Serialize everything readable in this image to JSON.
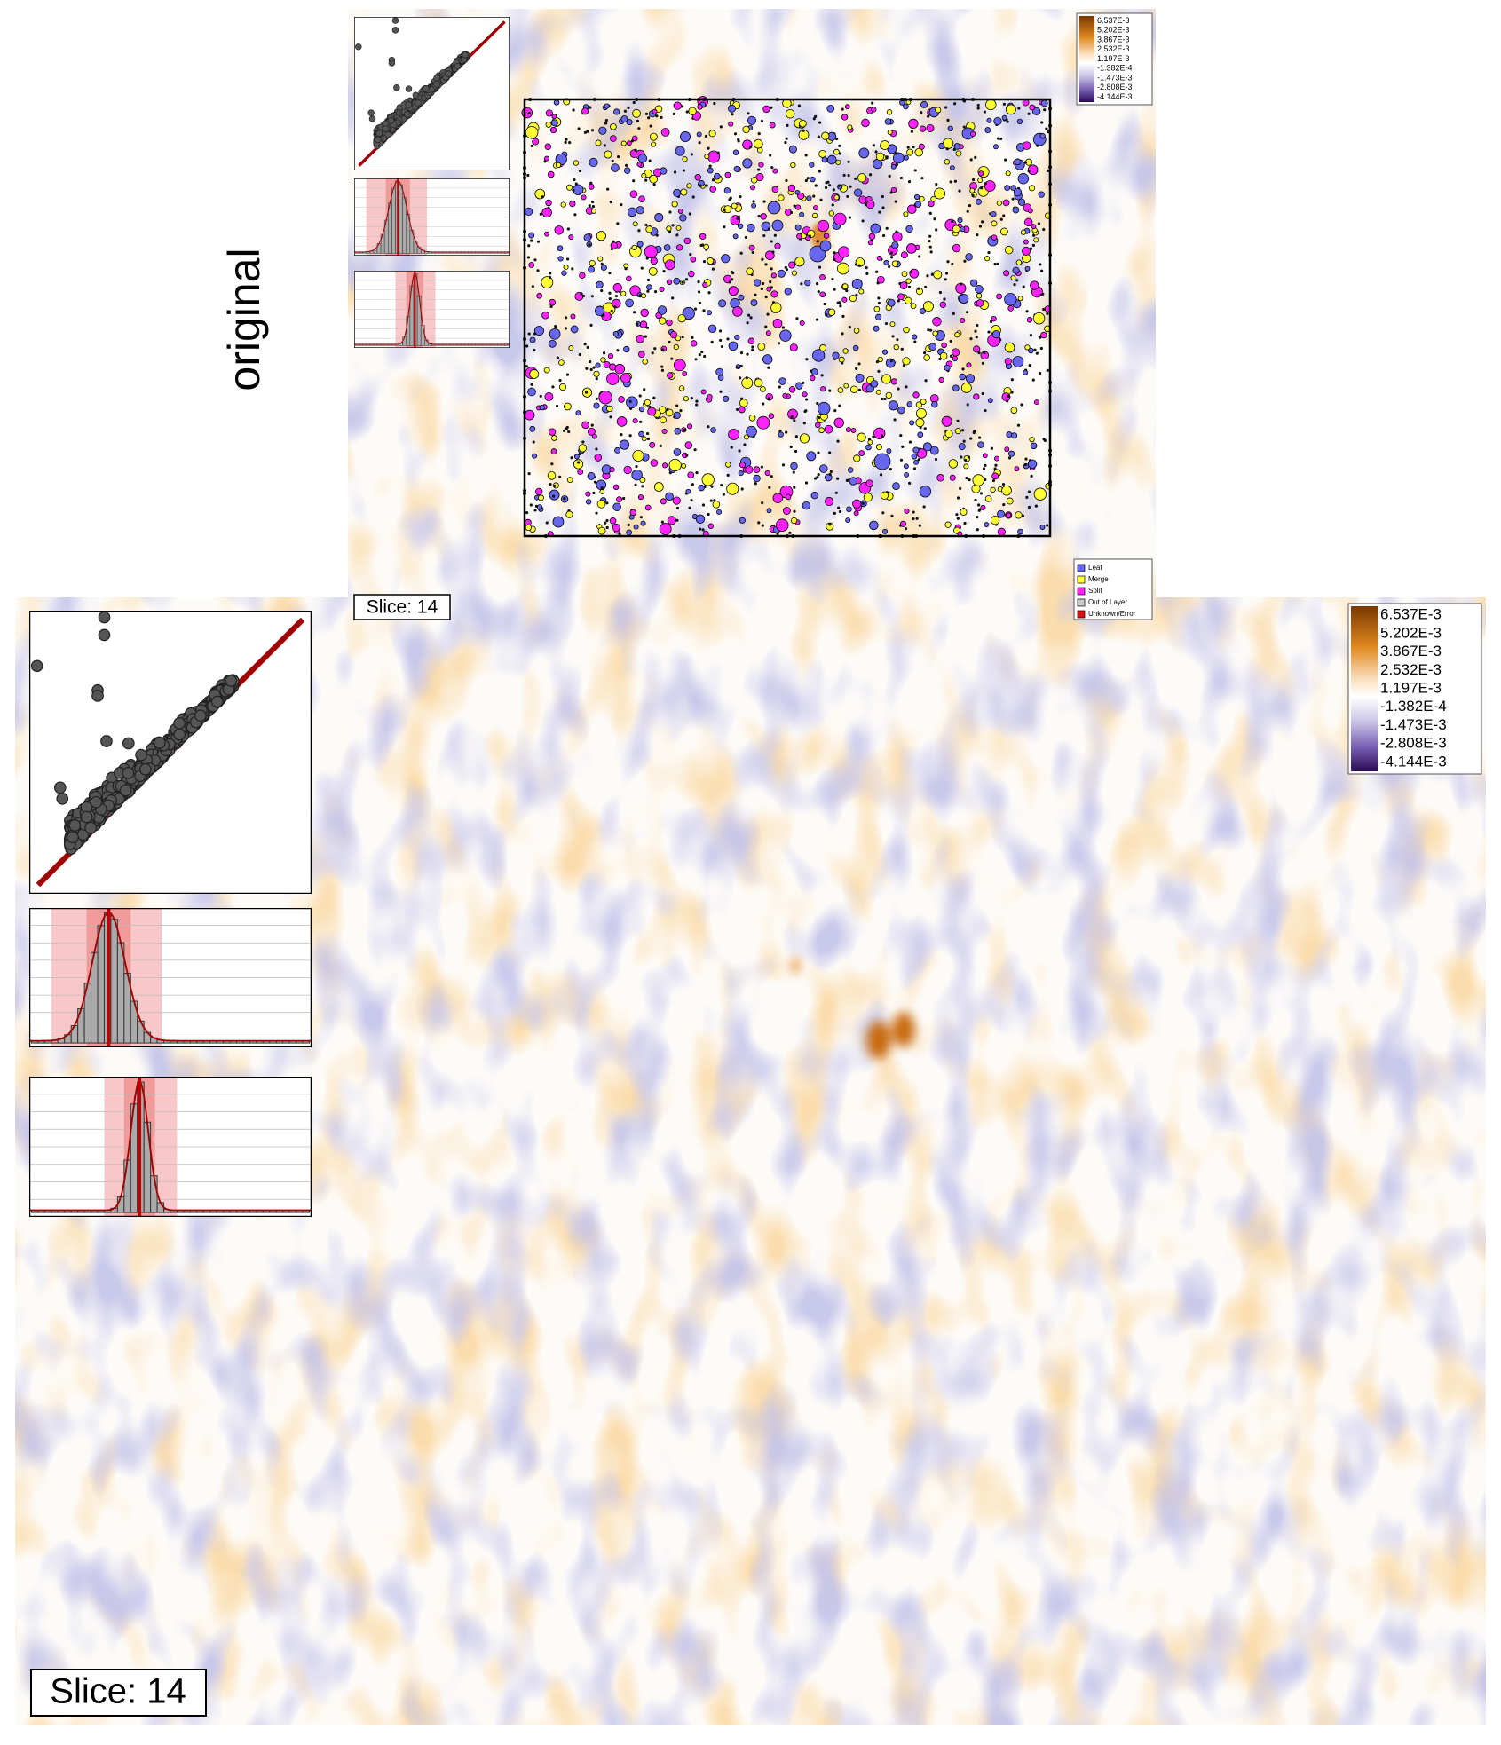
{
  "side_label": "original",
  "top_panel": {
    "colorbar": [
      "6.537E-3",
      "5.202E-3",
      "3.867E-3",
      "2.532E-3",
      "1.197E-3",
      "-1.382E-4",
      "-1.473E-3",
      "-2.808E-3",
      "-4.144E-3"
    ],
    "legend": [
      {
        "label": "Leaf",
        "color": "#6666ee"
      },
      {
        "label": "Merge",
        "color": "#ffff33"
      },
      {
        "label": "Split",
        "color": "#ff22ff"
      },
      {
        "label": "Out of Layer",
        "color": "#c8c8c8"
      },
      {
        "label": "Unknown/Error",
        "color": "#dd1111"
      }
    ],
    "slice_label": "Slice: 14"
  },
  "bottom_panel": {
    "colorbar": [
      "6.537E-3",
      "5.202E-3",
      "3.867E-3",
      "2.532E-3",
      "1.197E-3",
      "-1.382E-4",
      "-1.473E-3",
      "-2.808E-3",
      "-4.144E-3"
    ],
    "slice_label": "Slice: 14"
  }
}
